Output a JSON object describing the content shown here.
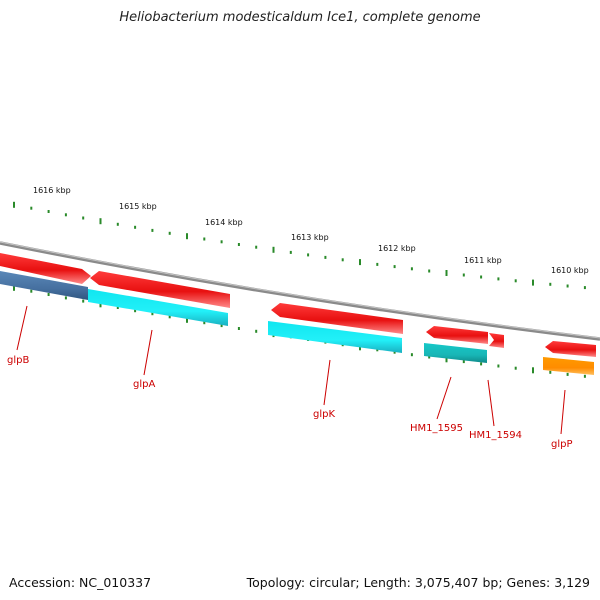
{
  "title": "Heliobacterium modesticaldum Ice1, complete genome",
  "footer": {
    "accession": "Accession: NC_010337",
    "topology": "Topology: circular; Length: 3,075,407 bp; Genes: 3,129"
  },
  "colors": {
    "backbone": "#8a8a8a",
    "tick": "#2a8a2a",
    "gene_label": "#cc0000",
    "forward_gene": "#ee1111",
    "cyan_gene": "#22e0e0",
    "teal_gene": "#20b8b8",
    "blue_gene": "#4a78a8",
    "orange_gene": "#ff9900"
  },
  "scale_labels": [
    "1616 kbp",
    "1615 kbp",
    "1614 kbp",
    "1613 kbp",
    "1612 kbp",
    "1611 kbp",
    "1610 kbp"
  ],
  "genes": [
    {
      "name": "glpB",
      "strand": "reverse",
      "color": "blue_gene"
    },
    {
      "name": "glpA",
      "strand": "reverse",
      "color": "cyan_gene"
    },
    {
      "name": "glpK",
      "strand": "reverse",
      "color": "cyan_gene"
    },
    {
      "name": "HM1_1595",
      "strand": "reverse",
      "color": "teal_gene"
    },
    {
      "name": "HM1_1594",
      "strand": "forward",
      "color": "forward_gene"
    },
    {
      "name": "glpP",
      "strand": "reverse",
      "color": "orange_gene"
    }
  ]
}
